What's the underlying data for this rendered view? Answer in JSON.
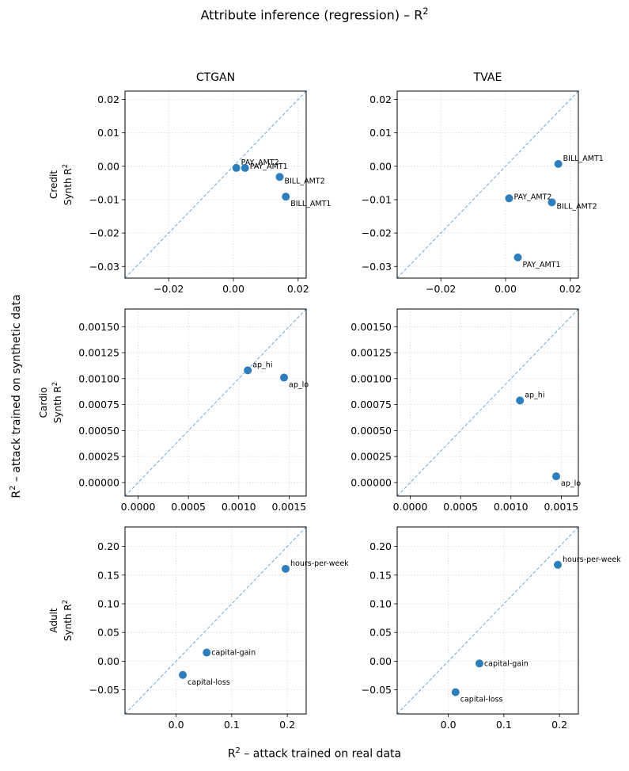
{
  "suptitle_text": "Attribute inference (regression) – R",
  "supxlabel_text": "– attack trained on real data",
  "supylabel_text": "– attack trained on synthetic data",
  "sup2": "2",
  "columns": {
    "ctgan": "CTGAN",
    "tvae": "TVAE"
  },
  "rows": {
    "credit": {
      "name": "Credit",
      "ylabel": "Synth R"
    },
    "cardio": {
      "name": "Cardio",
      "ylabel": "Synth R"
    },
    "adult": {
      "name": "Adult",
      "ylabel": "Synth R"
    }
  },
  "colors": {
    "point": "#2f7ebc",
    "diagonal": "#6aa9de",
    "grid": "#d9d9d9"
  },
  "chart_data": [
    {
      "type": "scatter",
      "panel": "credit-ctgan",
      "grid": true,
      "diagonal": "y=x dashed",
      "xlim": [
        -0.0335,
        0.0225
      ],
      "ylim": [
        -0.0335,
        0.0225
      ],
      "xticks": [
        -0.02,
        0.0,
        0.02
      ],
      "xticklabels": [
        "−0.02",
        "0.00",
        "0.02"
      ],
      "yticks": [
        -0.03,
        -0.02,
        -0.01,
        0.0,
        0.01,
        0.02
      ],
      "yticklabels": [
        "−0.03",
        "−0.02",
        "−0.01",
        "0.00",
        "0.01",
        "0.02"
      ],
      "points": [
        {
          "label": "PAY_AMT2",
          "x": 0.0009,
          "y": -0.0005,
          "ldx": 6,
          "ldy": -7
        },
        {
          "label": "PAY_AMT1",
          "x": 0.0036,
          "y": -0.0005,
          "ldx": 6,
          "ldy": -2
        },
        {
          "label": "BILL_AMT2",
          "x": 0.0143,
          "y": -0.0032,
          "ldx": 6,
          "ldy": 5
        },
        {
          "label": "BILL_AMT1",
          "x": 0.0162,
          "y": -0.0091,
          "ldx": 6,
          "ldy": 9
        }
      ]
    },
    {
      "type": "scatter",
      "panel": "credit-tvae",
      "grid": true,
      "diagonal": "y=x dashed",
      "xlim": [
        -0.0335,
        0.0225
      ],
      "ylim": [
        -0.0335,
        0.0225
      ],
      "xticks": [
        -0.02,
        0.0,
        0.02
      ],
      "xticklabels": [
        "−0.02",
        "0.00",
        "0.02"
      ],
      "yticks": [
        -0.03,
        -0.02,
        -0.01,
        0.0,
        0.01,
        0.02
      ],
      "yticklabels": [
        "−0.03",
        "−0.02",
        "−0.01",
        "0.00",
        "0.01",
        "0.02"
      ],
      "points": [
        {
          "label": "BILL_AMT1",
          "x": 0.0163,
          "y": 0.0007,
          "ldx": 6,
          "ldy": -7
        },
        {
          "label": "PAY_AMT2",
          "x": 0.0011,
          "y": -0.0096,
          "ldx": 6,
          "ldy": -2
        },
        {
          "label": "BILL_AMT2",
          "x": 0.0143,
          "y": -0.0108,
          "ldx": 6,
          "ldy": 5
        },
        {
          "label": "PAY_AMT1",
          "x": 0.0038,
          "y": -0.0273,
          "ldx": 6,
          "ldy": 9
        }
      ]
    },
    {
      "type": "scatter",
      "panel": "cardio-ctgan",
      "grid": true,
      "diagonal": "y=x dashed",
      "xlim": [
        -0.00013,
        0.00167
      ],
      "ylim": [
        -0.00013,
        0.00167
      ],
      "xticks": [
        0.0,
        0.0005,
        0.001,
        0.0015
      ],
      "xticklabels": [
        "0.0000",
        "0.0005",
        "0.0010",
        "0.0015"
      ],
      "yticks": [
        0.0,
        0.00025,
        0.0005,
        0.00075,
        0.001,
        0.00125,
        0.0015
      ],
      "yticklabels": [
        "0.00000",
        "0.00025",
        "0.00050",
        "0.00075",
        "0.00100",
        "0.00125",
        "0.00150"
      ],
      "points": [
        {
          "label": "ap_hi",
          "x": 0.00109,
          "y": 0.00108,
          "ldx": 6,
          "ldy": -7
        },
        {
          "label": "ap_lo",
          "x": 0.00145,
          "y": 0.00101,
          "ldx": 6,
          "ldy": 9
        }
      ]
    },
    {
      "type": "scatter",
      "panel": "cardio-tvae",
      "grid": true,
      "diagonal": "y=x dashed",
      "xlim": [
        -0.00013,
        0.00167
      ],
      "ylim": [
        -0.00013,
        0.00167
      ],
      "xticks": [
        0.0,
        0.0005,
        0.001,
        0.0015
      ],
      "xticklabels": [
        "0.0000",
        "0.0005",
        "0.0010",
        "0.0015"
      ],
      "yticks": [
        0.0,
        0.00025,
        0.0005,
        0.00075,
        0.001,
        0.00125,
        0.0015
      ],
      "yticklabels": [
        "0.00000",
        "0.00025",
        "0.00050",
        "0.00075",
        "0.00100",
        "0.00125",
        "0.00150"
      ],
      "points": [
        {
          "label": "ap_hi",
          "x": 0.00109,
          "y": 0.00079,
          "ldx": 6,
          "ldy": -7
        },
        {
          "label": "ap_lo",
          "x": 0.00145,
          "y": 6e-05,
          "ldx": 6,
          "ldy": 9
        }
      ]
    },
    {
      "type": "scatter",
      "panel": "adult-ctgan",
      "grid": true,
      "diagonal": "y=x dashed",
      "xlim": [
        -0.092,
        0.234
      ],
      "ylim": [
        -0.092,
        0.234
      ],
      "xticks": [
        0.0,
        0.1,
        0.2
      ],
      "xticklabels": [
        "0.0",
        "0.1",
        "0.2"
      ],
      "yticks": [
        -0.05,
        0.0,
        0.05,
        0.1,
        0.15,
        0.2
      ],
      "yticklabels": [
        "−0.05",
        "0.00",
        "0.05",
        "0.10",
        "0.15",
        "0.20"
      ],
      "points": [
        {
          "label": "hours-per-week",
          "x": 0.197,
          "y": 0.161,
          "ldx": 6,
          "ldy": -7
        },
        {
          "label": "capital-gain",
          "x": 0.055,
          "y": 0.015,
          "ldx": 6,
          "ldy": 0
        },
        {
          "label": "capital-loss",
          "x": 0.012,
          "y": -0.024,
          "ldx": 6,
          "ldy": 9
        }
      ]
    },
    {
      "type": "scatter",
      "panel": "adult-tvae",
      "grid": true,
      "diagonal": "y=x dashed",
      "xlim": [
        -0.092,
        0.234
      ],
      "ylim": [
        -0.092,
        0.234
      ],
      "xticks": [
        0.0,
        0.1,
        0.2
      ],
      "xticklabels": [
        "0.0",
        "0.1",
        "0.2"
      ],
      "yticks": [
        -0.05,
        0.0,
        0.05,
        0.1,
        0.15,
        0.2
      ],
      "yticklabels": [
        "−0.05",
        "0.00",
        "0.05",
        "0.10",
        "0.15",
        "0.20"
      ],
      "points": [
        {
          "label": "hours-per-week",
          "x": 0.197,
          "y": 0.168,
          "ldx": 6,
          "ldy": -7
        },
        {
          "label": "capital-gain",
          "x": 0.056,
          "y": -0.004,
          "ldx": 6,
          "ldy": 0
        },
        {
          "label": "capital-loss",
          "x": 0.013,
          "y": -0.054,
          "ldx": 6,
          "ldy": 9
        }
      ]
    }
  ]
}
